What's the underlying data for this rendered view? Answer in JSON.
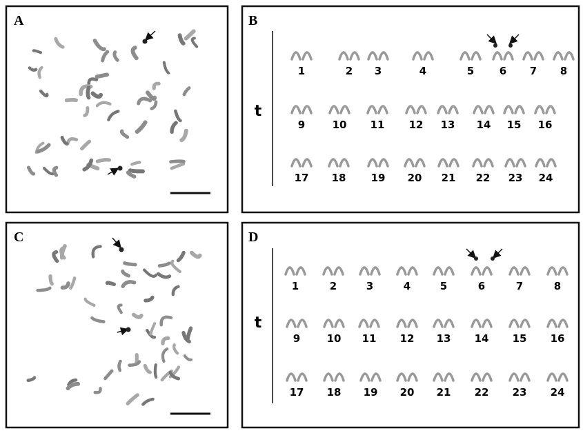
{
  "panels": [
    {
      "label": "A"
    },
    {
      "label": "B",
      "row_label": "t",
      "rows": [
        [
          1,
          2,
          3,
          4,
          5,
          6,
          7,
          8
        ],
        [
          9,
          10,
          11,
          12,
          13,
          14,
          15,
          16
        ],
        [
          17,
          18,
          19,
          20,
          21,
          22,
          23,
          24
        ]
      ]
    },
    {
      "label": "C"
    },
    {
      "label": "D",
      "row_label": "t",
      "rows": [
        [
          1,
          2,
          3,
          4,
          5,
          6,
          7,
          8
        ],
        [
          9,
          10,
          11,
          12,
          13,
          14,
          15,
          16
        ],
        [
          17,
          18,
          19,
          20,
          21,
          22,
          23,
          24
        ]
      ]
    }
  ]
}
